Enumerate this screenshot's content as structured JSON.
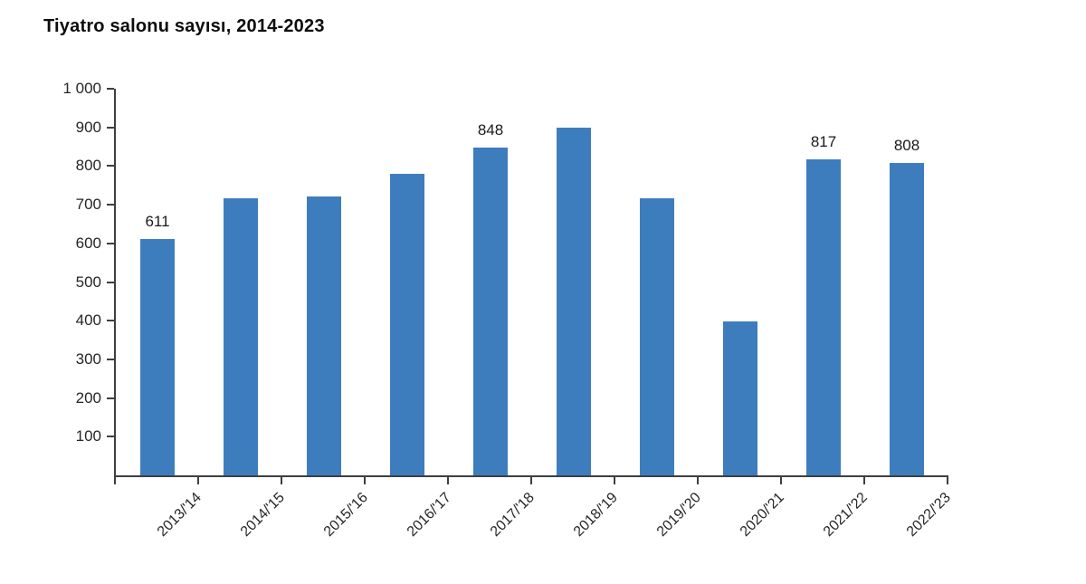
{
  "page": {
    "title": "Tiyatro salonu sayısı, 2014-2023"
  },
  "colors": {
    "bar": "#3d7dbe",
    "axis": "#3f3f3f",
    "text": "#262626"
  },
  "chart_data": {
    "type": "bar",
    "title": "Tiyatro salonu sayısı, 2014-2023",
    "categories": [
      "2013/'14",
      "2014/'15",
      "2015/'16",
      "2016/'17",
      "2017/'18",
      "2018/'19",
      "2019/'20",
      "2020/'21",
      "2021/'22",
      "2022/'23"
    ],
    "values": [
      611,
      717,
      721,
      780,
      848,
      899,
      716,
      399,
      817,
      808
    ],
    "value_labels": [
      "611",
      null,
      null,
      null,
      "848",
      null,
      null,
      null,
      "817",
      "808"
    ],
    "xlabel": "",
    "ylabel": "",
    "ylim": [
      0,
      1000
    ],
    "y_ticks": [
      {
        "value": 1000,
        "label": "1 000"
      },
      {
        "value": 900,
        "label": "900"
      },
      {
        "value": 800,
        "label": "800"
      },
      {
        "value": 700,
        "label": "700"
      },
      {
        "value": 600,
        "label": "600"
      },
      {
        "value": 500,
        "label": "500"
      },
      {
        "value": 400,
        "label": "400"
      },
      {
        "value": 300,
        "label": "300"
      },
      {
        "value": 200,
        "label": "200"
      },
      {
        "value": 100,
        "label": "100"
      }
    ],
    "grid": false,
    "legend": false,
    "bar_color": "#3d7dbe"
  }
}
